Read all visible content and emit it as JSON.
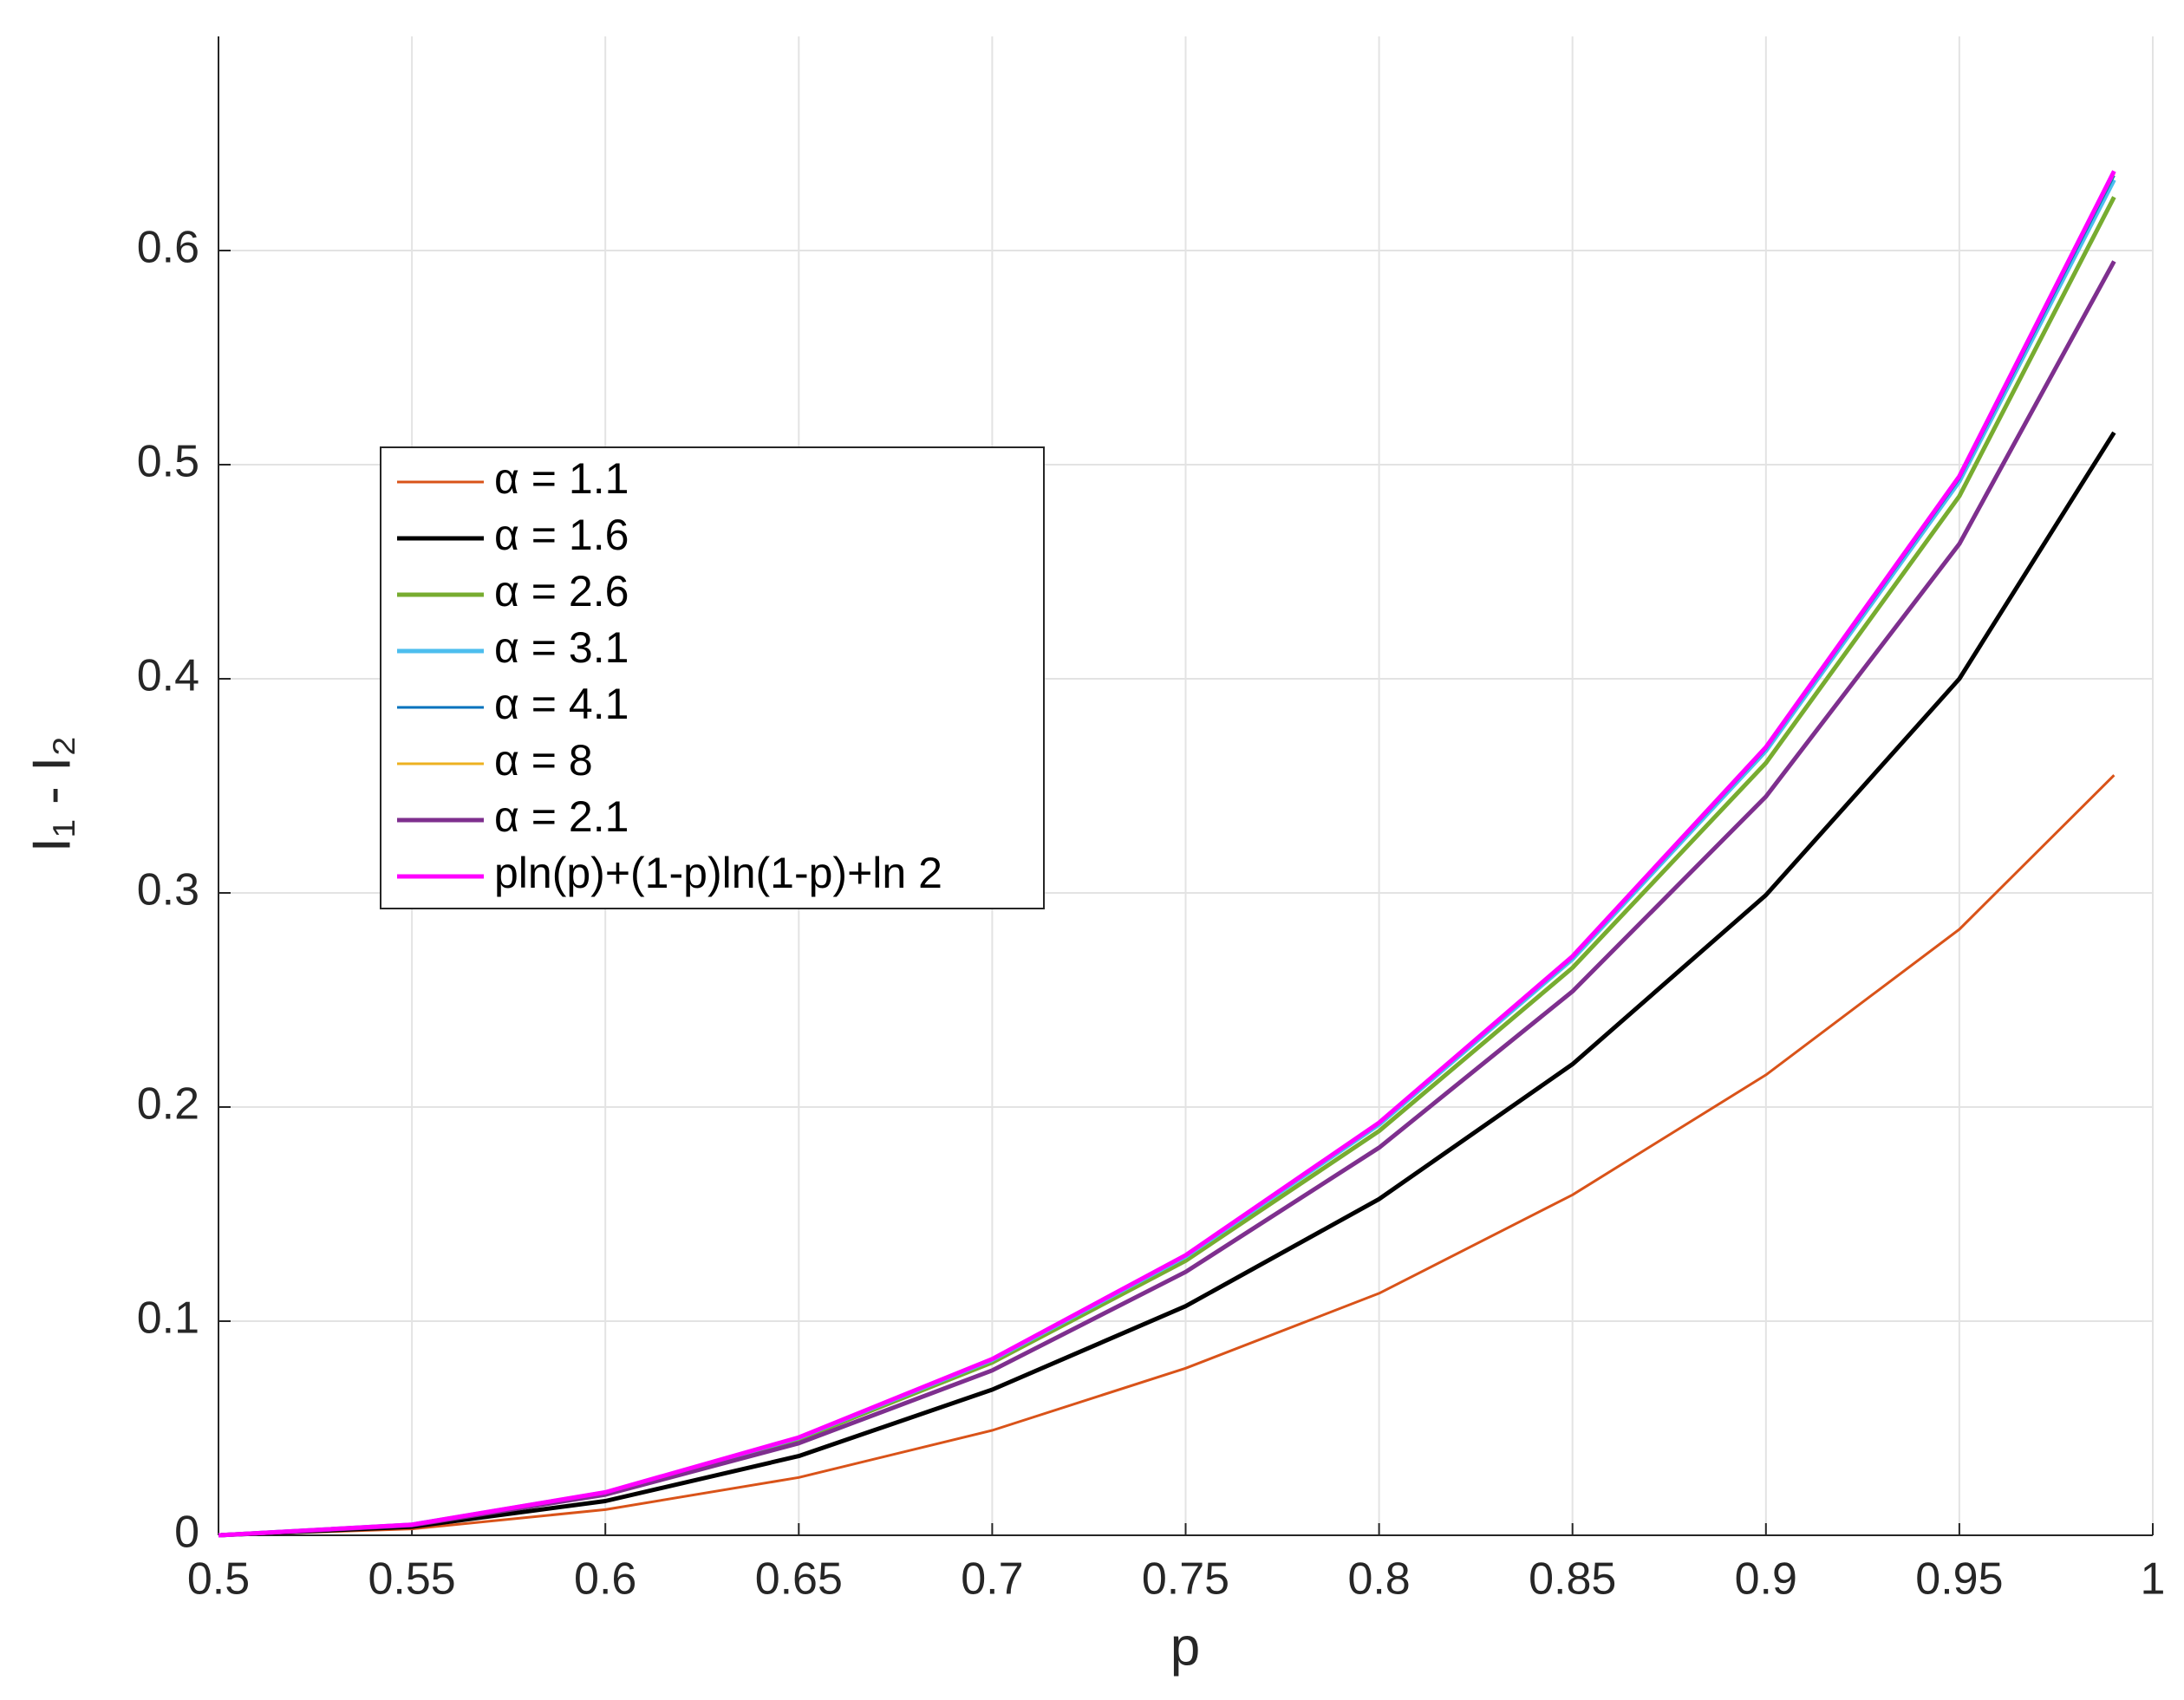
{
  "chart_data": {
    "type": "line",
    "xlabel": "p",
    "ylabel": "I₁ - I₂",
    "x": [
      0.5,
      0.55,
      0.6,
      0.65,
      0.7,
      0.75,
      0.8,
      0.85,
      0.9,
      0.95,
      0.99
    ],
    "series": [
      {
        "name": "α = 1.1",
        "color": "#d95319",
        "values": [
          0,
          0.003,
          0.012,
          0.027,
          0.049,
          0.078,
          0.113,
          0.159,
          0.215,
          0.283,
          0.355
        ]
      },
      {
        "name": "α = 1.6",
        "color": "#000000",
        "values": [
          0,
          0.004,
          0.016,
          0.037,
          0.068,
          0.107,
          0.157,
          0.22,
          0.299,
          0.4,
          0.515
        ]
      },
      {
        "name": "α = 2.6",
        "color": "#77ac30",
        "values": [
          0,
          0.0049,
          0.0197,
          0.0448,
          0.0807,
          0.1282,
          0.1888,
          0.265,
          0.3607,
          0.4853,
          0.625
        ]
      },
      {
        "name": "α = 3.1",
        "color": "#4dbeee",
        "values": [
          0,
          0.005,
          0.02,
          0.0455,
          0.0819,
          0.1302,
          0.1918,
          0.2691,
          0.3663,
          0.4922,
          0.633
        ]
      },
      {
        "name": "α = 4.1",
        "color": "#0072bd",
        "values": [
          0,
          0.005,
          0.0201,
          0.0456,
          0.0821,
          0.1305,
          0.1923,
          0.2698,
          0.3673,
          0.4935,
          0.635
        ]
      },
      {
        "name": "α = 8",
        "color": "#edb120",
        "values": [
          0,
          0.005,
          0.0201,
          0.0457,
          0.0823,
          0.1308,
          0.1926,
          0.2703,
          0.368,
          0.4945,
          0.636
        ]
      },
      {
        "name": "α = 2.1",
        "color": "#7e2f8e",
        "values": [
          0,
          0.0047,
          0.019,
          0.043,
          0.077,
          0.123,
          0.181,
          0.254,
          0.345,
          0.463,
          0.595
        ]
      },
      {
        "name": "pln(p)+(1-p)ln(1-p)+ln 2",
        "color": "#ff00ff",
        "values": [
          0,
          0.005,
          0.0201,
          0.0457,
          0.0823,
          0.1308,
          0.1927,
          0.2704,
          0.3681,
          0.4946,
          0.6371
        ]
      }
    ],
    "xlim": [
      0.5,
      1
    ],
    "xticks": [
      0.5,
      0.55,
      0.6,
      0.65,
      0.7,
      0.75,
      0.8,
      0.85,
      0.9,
      0.95,
      1
    ],
    "ylim": [
      0,
      0.7
    ],
    "yticks": [
      0,
      0.1,
      0.2,
      0.3,
      0.4,
      0.5,
      0.6
    ],
    "grid": true,
    "legend": "upper left"
  }
}
